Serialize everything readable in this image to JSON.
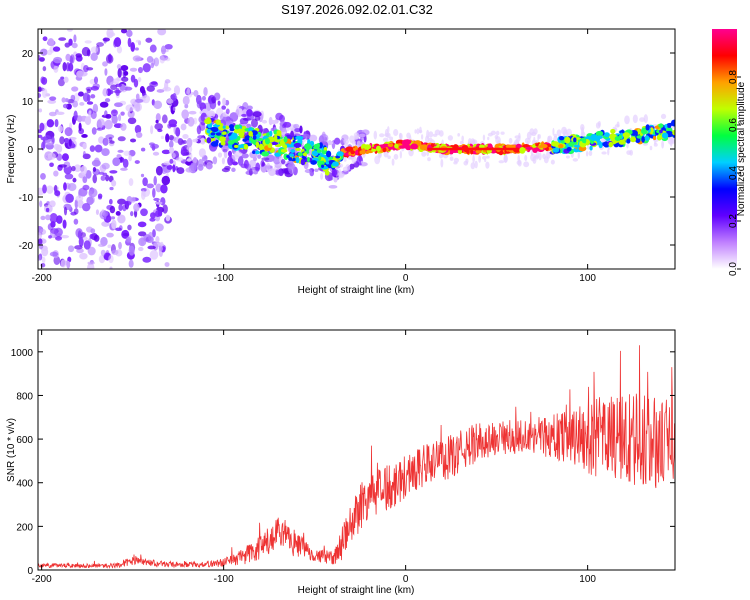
{
  "title": "S197.2026.092.02.01.C32",
  "chart_data": [
    {
      "type": "heatmap",
      "xlabel": "Height of straight line (km)",
      "ylabel": "Frequency (Hz)",
      "xlim": [
        -202,
        148
      ],
      "ylim": [
        -25,
        25
      ],
      "x_ticks": [
        -200,
        -100,
        0,
        100
      ],
      "y_ticks": [
        -20,
        -10,
        0,
        10,
        20
      ],
      "colorbar": {
        "label": "Normalized spectral amplitude",
        "range": [
          0,
          1
        ],
        "ticks": [
          "0.0",
          "0.2",
          "0.4",
          "0.6",
          "0.8"
        ],
        "tick_values": [
          0,
          0.2,
          0.4,
          0.6,
          0.8
        ],
        "colors": [
          "#ffffff",
          "#c080ff",
          "#6000ff",
          "#0000ff",
          "#00d0ff",
          "#00ff40",
          "#c0ff00",
          "#ffa000",
          "#ff0000",
          "#ff0090"
        ]
      },
      "ridge": {
        "x": [
          -110,
          -100,
          -90,
          -80,
          -70,
          -60,
          -50,
          -45,
          -40,
          -35,
          -30,
          -20,
          -10,
          0,
          10,
          20,
          40,
          60,
          80,
          90,
          100,
          110,
          120,
          130,
          140,
          148
        ],
        "y": [
          4,
          3,
          2,
          1.5,
          1,
          0,
          -1,
          -2,
          -3.5,
          -1,
          -0.5,
          0,
          0.5,
          1,
          0.5,
          0,
          0,
          0,
          0.5,
          1,
          1.5,
          2,
          2.5,
          3,
          3.5,
          4
        ]
      },
      "noise_region": {
        "x_range": [
          -202,
          -40
        ],
        "freq_range": [
          -25,
          25
        ]
      }
    },
    {
      "type": "line",
      "xlabel": "Height of straight line (km)",
      "ylabel": "SNR (10 * v/v)",
      "xlim": [
        -202,
        148
      ],
      "ylim": [
        0,
        1100
      ],
      "x_ticks": [
        -200,
        -100,
        0,
        100
      ],
      "y_ticks": [
        0,
        200,
        400,
        600,
        800,
        1000
      ],
      "line_color": "#ee3333",
      "envelope": {
        "x": [
          -202,
          -160,
          -150,
          -130,
          -110,
          -100,
          -90,
          -80,
          -70,
          -60,
          -50,
          -40,
          -35,
          -30,
          -25,
          -20,
          -15,
          -10,
          0,
          10,
          20,
          30,
          40,
          50,
          60,
          70,
          80,
          90,
          100,
          110,
          120,
          130,
          140,
          148
        ],
        "mean": [
          20,
          20,
          40,
          25,
          25,
          35,
          60,
          100,
          160,
          120,
          70,
          50,
          120,
          200,
          300,
          340,
          350,
          380,
          430,
          480,
          500,
          540,
          590,
          600,
          610,
          620,
          610,
          620,
          600,
          610,
          600,
          590,
          580,
          600
        ],
        "spread": [
          10,
          10,
          20,
          12,
          12,
          20,
          40,
          60,
          80,
          60,
          30,
          30,
          80,
          100,
          120,
          110,
          110,
          110,
          110,
          100,
          100,
          100,
          90,
          80,
          80,
          90,
          100,
          130,
          160,
          200,
          220,
          230,
          200,
          180
        ]
      }
    }
  ]
}
